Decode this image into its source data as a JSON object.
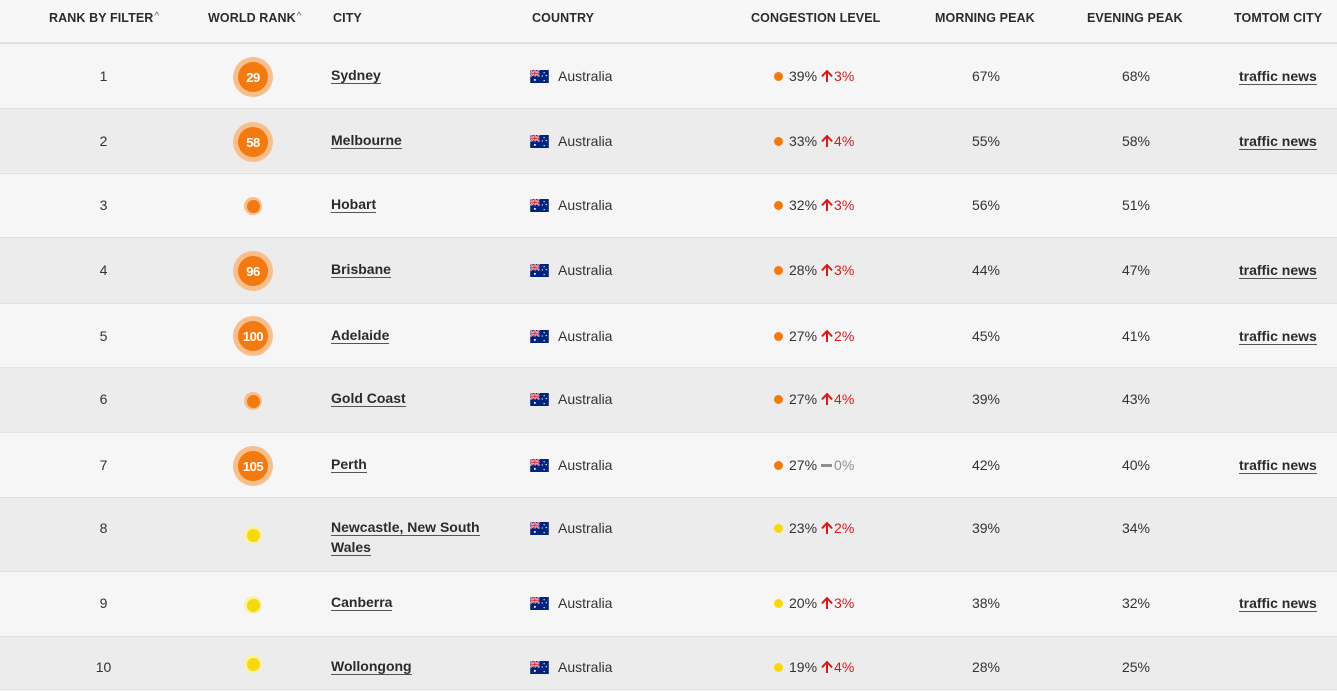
{
  "header": {
    "rank_by_filter": "RANK BY FILTER",
    "world_rank": "WORLD RANK",
    "sort_glyph": "^",
    "city": "CITY",
    "country": "COUNTRY",
    "congestion_level": "CONGESTION LEVEL",
    "morning_peak": "MORNING PEAK",
    "evening_peak": "EVENING PEAK",
    "tomtom_city": "TOMTOM CITY"
  },
  "colors": {
    "orange": "#f37a10",
    "yellow": "#f5d90c",
    "increase_red": "#d61a1a",
    "flat_grey": "#8d8f94"
  },
  "rows": [
    {
      "rank": "1",
      "world_rank": "29",
      "level_color": "orange",
      "city": "Sydney",
      "country": "Australia",
      "congestion": "39%",
      "change": "3%",
      "change_dir": "up",
      "morning": "67%",
      "evening": "68%",
      "news": "traffic news"
    },
    {
      "rank": "2",
      "world_rank": "58",
      "level_color": "orange",
      "city": "Melbourne",
      "country": "Australia",
      "congestion": "33%",
      "change": "4%",
      "change_dir": "up",
      "morning": "55%",
      "evening": "58%",
      "news": "traffic news"
    },
    {
      "rank": "3",
      "world_rank": "",
      "level_color": "orange",
      "city": "Hobart",
      "country": "Australia",
      "congestion": "32%",
      "change": "3%",
      "change_dir": "up",
      "morning": "56%",
      "evening": "51%",
      "news": ""
    },
    {
      "rank": "4",
      "world_rank": "96",
      "level_color": "orange",
      "city": "Brisbane",
      "country": "Australia",
      "congestion": "28%",
      "change": "3%",
      "change_dir": "up",
      "morning": "44%",
      "evening": "47%",
      "news": "traffic news"
    },
    {
      "rank": "5",
      "world_rank": "100",
      "level_color": "orange",
      "city": "Adelaide",
      "country": "Australia",
      "congestion": "27%",
      "change": "2%",
      "change_dir": "up",
      "morning": "45%",
      "evening": "41%",
      "news": "traffic news"
    },
    {
      "rank": "6",
      "world_rank": "",
      "level_color": "orange",
      "city": "Gold Coast",
      "country": "Australia",
      "congestion": "27%",
      "change": "4%",
      "change_dir": "up",
      "morning": "39%",
      "evening": "43%",
      "news": ""
    },
    {
      "rank": "7",
      "world_rank": "105",
      "level_color": "orange",
      "city": "Perth",
      "country": "Australia",
      "congestion": "27%",
      "change": "0%",
      "change_dir": "flat",
      "morning": "42%",
      "evening": "40%",
      "news": "traffic news"
    },
    {
      "rank": "8",
      "world_rank": "",
      "level_color": "yellow",
      "city": "Newcastle, New South Wales",
      "country": "Australia",
      "congestion": "23%",
      "change": "2%",
      "change_dir": "up",
      "morning": "39%",
      "evening": "34%",
      "news": ""
    },
    {
      "rank": "9",
      "world_rank": "",
      "level_color": "yellow",
      "city": "Canberra",
      "country": "Australia",
      "congestion": "20%",
      "change": "3%",
      "change_dir": "up",
      "morning": "38%",
      "evening": "32%",
      "news": "traffic news"
    },
    {
      "rank": "10",
      "world_rank": "",
      "level_color": "yellow",
      "city": "Wollongong",
      "country": "Australia",
      "congestion": "19%",
      "change": "4%",
      "change_dir": "up",
      "morning": "28%",
      "evening": "25%",
      "news": ""
    }
  ]
}
